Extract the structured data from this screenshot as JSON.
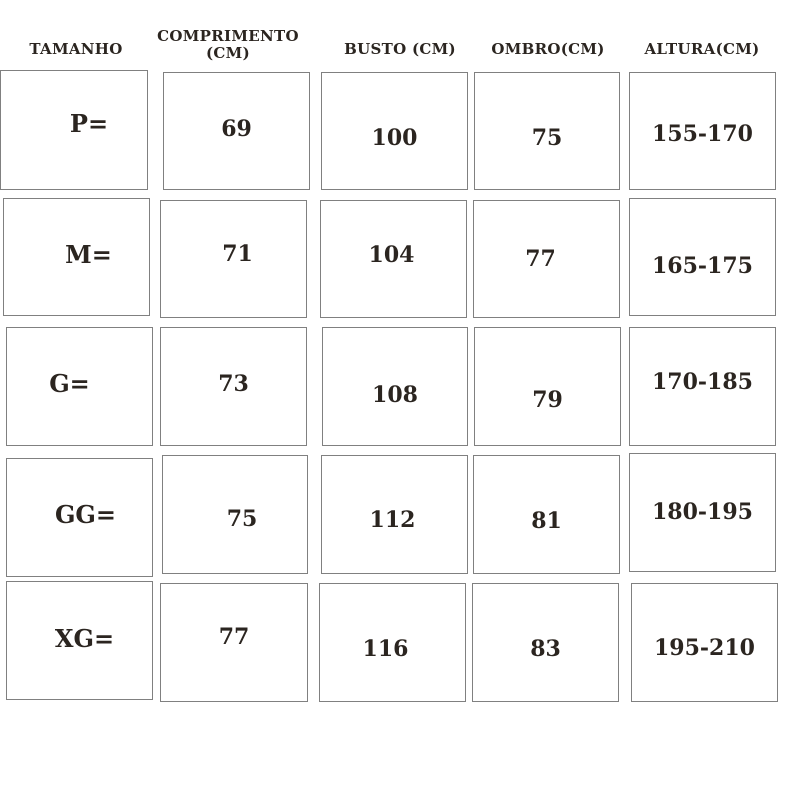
{
  "headers": [
    "TAMANHO",
    "COMPRIMENTO (CM)",
    "BUSTO (CM)",
    "OMBRO(CM)",
    "ALTURA(CM)"
  ],
  "rows": [
    {
      "size": "P=",
      "comprimento": "69",
      "busto": "100",
      "ombro": "75",
      "altura": "155-170"
    },
    {
      "size": "M=",
      "comprimento": "71",
      "busto": "104",
      "ombro": "77",
      "altura": "165-175"
    },
    {
      "size": "G=",
      "comprimento": "73",
      "busto": "108",
      "ombro": "79",
      "altura": "170-185"
    },
    {
      "size": "GG=",
      "comprimento": "75",
      "busto": "112",
      "ombro": "81",
      "altura": "180-195"
    },
    {
      "size": "XG=",
      "comprimento": "77",
      "busto": "116",
      "ombro": "83",
      "altura": "195-210"
    }
  ],
  "colors": {
    "text": "#2b2520",
    "border": "#808080",
    "background": "#ffffff"
  }
}
